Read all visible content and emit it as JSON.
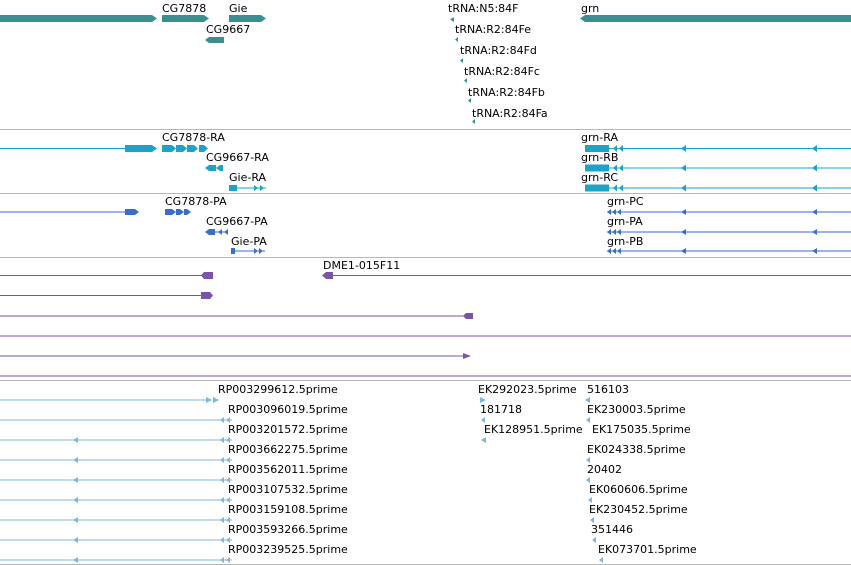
{
  "colors": {
    "gene": "#3a908f",
    "transcript": "#1ea3c8",
    "protein": "#3a6ec8",
    "clone": "#7855a8",
    "est": "#7cb8dc",
    "separator": "#b8b8b8",
    "background": "#ffffff"
  },
  "tracks": {
    "genes": {
      "labels": [
        "CG7878",
        "Gie",
        "CG9667",
        "tRNA:N5:84F",
        "tRNA:R2:84Fe",
        "tRNA:R2:84Fd",
        "tRNA:R2:84Fc",
        "tRNA:R2:84Fb",
        "tRNA:R2:84Fa",
        "grn"
      ]
    },
    "transcripts": {
      "labels": [
        "CG7878-RA",
        "CG9667-RA",
        "Gie-RA",
        "grn-RA",
        "grn-RB",
        "grn-RC"
      ]
    },
    "proteins": {
      "labels": [
        "CG7878-PA",
        "CG9667-PA",
        "Gie-PA",
        "grn-PC",
        "grn-PA",
        "grn-PB"
      ]
    },
    "clones": {
      "labels": [
        "DME1-015F11"
      ]
    },
    "ests": {
      "labels": [
        "RP003299612.5prime",
        "RP003096019.5prime",
        "RP003201572.5prime",
        "RP003662275.5prime",
        "RP003562011.5prime",
        "RP003107532.5prime",
        "RP003159108.5prime",
        "RP003593266.5prime",
        "RP003239525.5prime",
        "EK292023.5prime",
        "516103",
        "181718",
        "EK230003.5prime",
        "EK128951.5prime",
        "EK175035.5prime",
        "EK024338.5prime",
        "20402",
        "EK060606.5prime",
        "EK230452.5prime",
        "351446",
        "EK073701.5prime"
      ]
    }
  }
}
